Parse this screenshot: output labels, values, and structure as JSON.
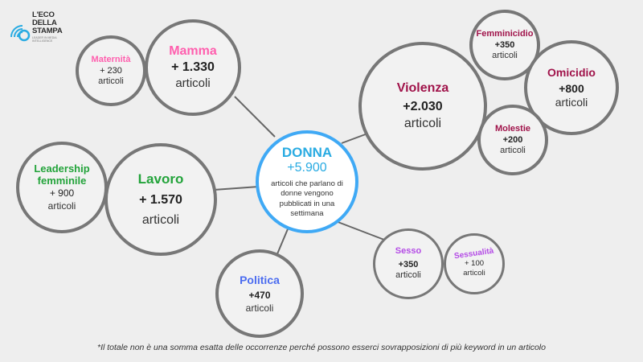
{
  "logo": {
    "line1": "L'ECO",
    "line2": "DELLA",
    "line3": "STAMPA",
    "tagline": "LEADER IN MEDIA INTELLIGENCE",
    "color": "#29abe2"
  },
  "center": {
    "title": "DONNA",
    "value": "+5.900",
    "unit": "articoli che parlano di donne vengono pubblicati in una settimana",
    "color": "#29abe2"
  },
  "nodes": {
    "maternita": {
      "title": "Maternità",
      "value": "+ 230",
      "unit": "articoli",
      "color": "#ff5fae"
    },
    "mamma": {
      "title": "Mamma",
      "value": "+ 1.330",
      "unit": "articoli",
      "color": "#ff5fae"
    },
    "violenza": {
      "title": "Violenza",
      "value": "+2.030",
      "unit": "articoli",
      "color": "#a0134a"
    },
    "femminicidio": {
      "title": "Femminicidio",
      "value": "+350",
      "unit": "articoli",
      "color": "#a0134a"
    },
    "omicidio": {
      "title": "Omicidio",
      "value": "+800",
      "unit": "articoli",
      "color": "#a0134a"
    },
    "molestie": {
      "title": "Molestie",
      "value": "+200",
      "unit": "articoli",
      "color": "#a0134a"
    },
    "leadership": {
      "title": "Leadership femminile",
      "value": "+ 900",
      "unit": "articoli",
      "color": "#22a33a"
    },
    "lavoro": {
      "title": "Lavoro",
      "value": "+ 1.570",
      "unit": "articoli",
      "color": "#22a33a"
    },
    "politica": {
      "title": "Politica",
      "value": "+470",
      "unit": "articoli",
      "color": "#4b6cf0"
    },
    "sesso": {
      "title": "Sesso",
      "value": "+350",
      "unit": "articoli",
      "color": "#b44be6"
    },
    "sessualita": {
      "title": "Sessualità",
      "value": "+ 100",
      "unit": "articoli",
      "color": "#b44be6"
    }
  },
  "footnote": "*Il totale non è una somma esatta delle occorrenze perché possono esserci sovrapposizioni di più keyword in un articolo"
}
